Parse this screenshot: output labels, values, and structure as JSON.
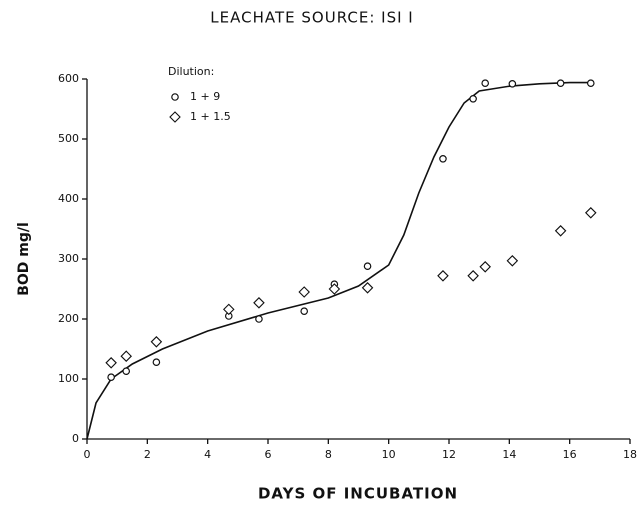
{
  "chart_data": {
    "type": "scatter",
    "title": "LEACHATE SOURCE: ISI I",
    "xlabel": "DAYS OF INCUBATION",
    "ylabel": "BOD mg/l",
    "legend_title": "Dilution:",
    "xlim": [
      0,
      18
    ],
    "xticks": [
      0,
      2,
      4,
      6,
      8,
      10,
      12,
      14,
      16,
      18
    ],
    "ylim": [
      0,
      600
    ],
    "yticks": [
      0,
      100,
      200,
      300,
      400,
      500,
      600
    ],
    "grid": false,
    "series": [
      {
        "name": "1 + 9",
        "marker": "circle",
        "color": "#111111",
        "x": [
          0.8,
          1.3,
          2.3,
          4.7,
          5.7,
          7.2,
          8.2,
          8.2,
          9.3,
          11.8,
          12.8,
          13.2,
          14.1,
          15.7,
          16.7
        ],
        "values": [
          103,
          113,
          128,
          205,
          200,
          213,
          250,
          258,
          288,
          467,
          567,
          593,
          592,
          593,
          593
        ]
      },
      {
        "name": "1 + 1.5",
        "marker": "diamond",
        "color": "#111111",
        "x": [
          0.8,
          1.3,
          2.3,
          4.7,
          5.7,
          7.2,
          8.2,
          9.3,
          11.8,
          12.8,
          13.2,
          14.1,
          15.7,
          16.7
        ],
        "values": [
          127,
          138,
          162,
          216,
          227,
          245,
          250,
          252,
          272,
          272,
          287,
          297,
          347,
          377
        ]
      }
    ],
    "curve": {
      "color": "#111111",
      "x": [
        0,
        0.3,
        0.8,
        1.5,
        2.5,
        4,
        6,
        8,
        9,
        10,
        10.5,
        11,
        11.5,
        12,
        12.5,
        13,
        14,
        15,
        16,
        16.7
      ],
      "values": [
        0,
        60,
        100,
        125,
        150,
        180,
        210,
        235,
        255,
        290,
        340,
        410,
        470,
        520,
        560,
        580,
        588,
        592,
        594,
        594
      ]
    }
  }
}
